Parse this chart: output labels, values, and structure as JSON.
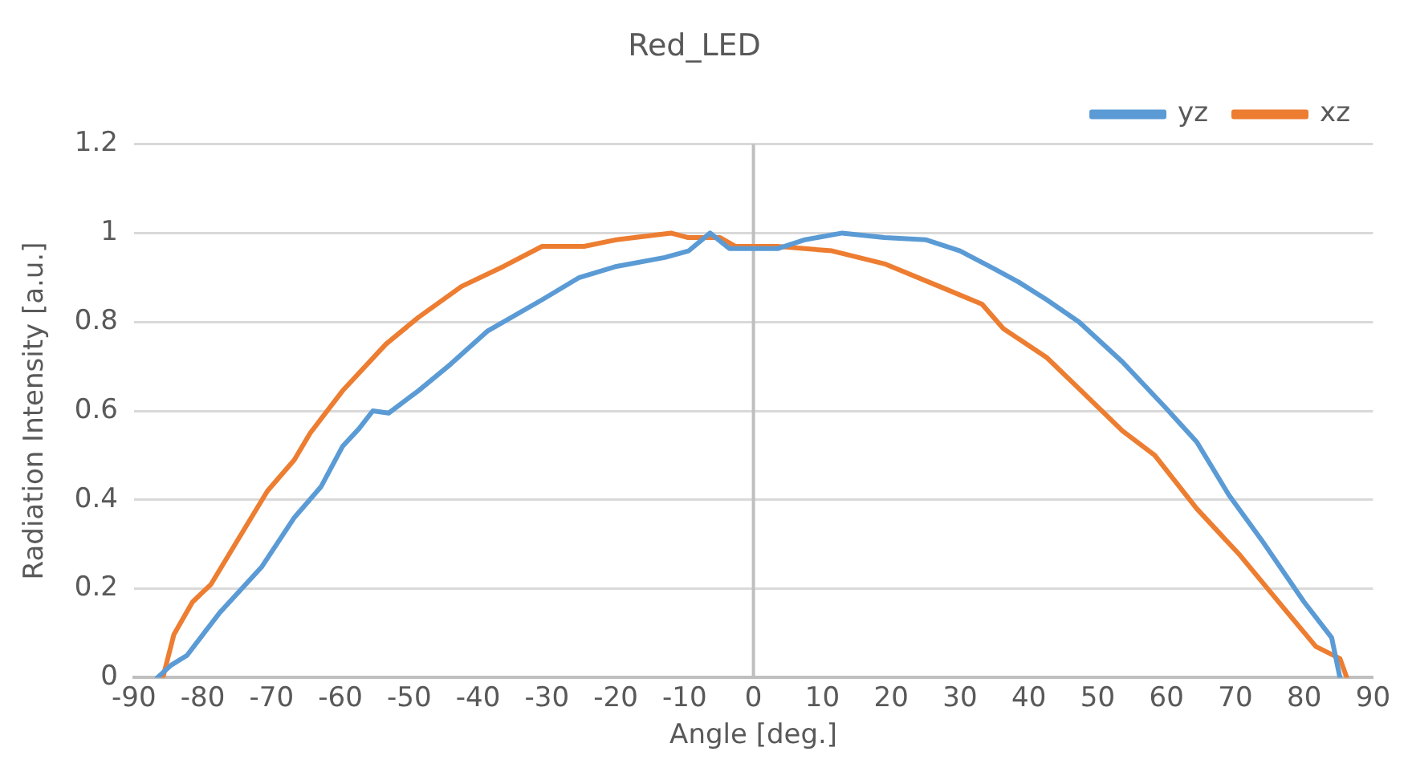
{
  "chart_data": {
    "type": "line",
    "title": "Red_LED",
    "xlabel": "Angle [deg.]",
    "ylabel": "Radiation Intensity [a.u.]",
    "series": [
      {
        "name": "yz",
        "color": "#5b9bd5",
        "x": [
          -86.6,
          -84.6,
          -82.3,
          -77.6,
          -71.4,
          -66.7,
          -62.8,
          -59.7,
          -57.3,
          -55.3,
          -53,
          -48.7,
          -44,
          -38.6,
          -30.7,
          -25.3,
          -19.9,
          -12.9,
          -9.4,
          -6.3,
          -3.5,
          0.5,
          3.5,
          7.5,
          12.9,
          19,
          25,
          30,
          34.9,
          38.5,
          42.6,
          47.3,
          53.6,
          59.7,
          64.4,
          69.1,
          73.8,
          80,
          84,
          85.2
        ],
        "values": [
          0,
          0.028,
          0.05,
          0.145,
          0.25,
          0.36,
          0.43,
          0.52,
          0.56,
          0.6,
          0.595,
          0.645,
          0.705,
          0.78,
          0.85,
          0.9,
          0.925,
          0.945,
          0.96,
          1,
          0.965,
          0.965,
          0.965,
          0.985,
          1,
          0.99,
          0.985,
          0.96,
          0.92,
          0.89,
          0.85,
          0.8,
          0.71,
          0.61,
          0.53,
          0.41,
          0.31,
          0.17,
          0.09,
          0
        ]
      },
      {
        "name": "xz",
        "color": "#ed7d31",
        "x": [
          -85.8,
          -84.2,
          -81.5,
          -78.8,
          -75.3,
          -70.6,
          -66.7,
          -64.4,
          -59.7,
          -53.4,
          -48.7,
          -42.4,
          -36.3,
          -30.7,
          -24.6,
          -19.9,
          -12,
          -9.6,
          -4.9,
          -2.6,
          0,
          3.5,
          11.4,
          19.2,
          27,
          33.2,
          36.3,
          42.6,
          47.3,
          53.6,
          58.3,
          64.4,
          70.7,
          77,
          81.7,
          85.2,
          86.2
        ],
        "values": [
          0,
          0.097,
          0.17,
          0.21,
          0.3,
          0.42,
          0.49,
          0.55,
          0.645,
          0.75,
          0.81,
          0.88,
          0.925,
          0.97,
          0.97,
          0.985,
          1,
          0.99,
          0.99,
          0.97,
          0.97,
          0.97,
          0.96,
          0.93,
          0.88,
          0.84,
          0.785,
          0.72,
          0.65,
          0.555,
          0.5,
          0.38,
          0.275,
          0.157,
          0.07,
          0.043,
          0
        ]
      }
    ],
    "xlim": [
      -90,
      90
    ],
    "xticks": [
      -90,
      -80,
      -70,
      -60,
      -50,
      -40,
      -30,
      -20,
      -10,
      0,
      10,
      20,
      30,
      40,
      50,
      60,
      70,
      80,
      90
    ],
    "ylim": [
      0,
      1.2
    ],
    "yticks": [
      0,
      0.2,
      0.4,
      0.6,
      0.8,
      1,
      1.2
    ],
    "ref_lines": [
      {
        "axis": "x",
        "value": 0,
        "color": "#bfbfbf"
      }
    ],
    "grid": "y",
    "legend": "top right",
    "marker": "none",
    "line_style": "solid"
  }
}
